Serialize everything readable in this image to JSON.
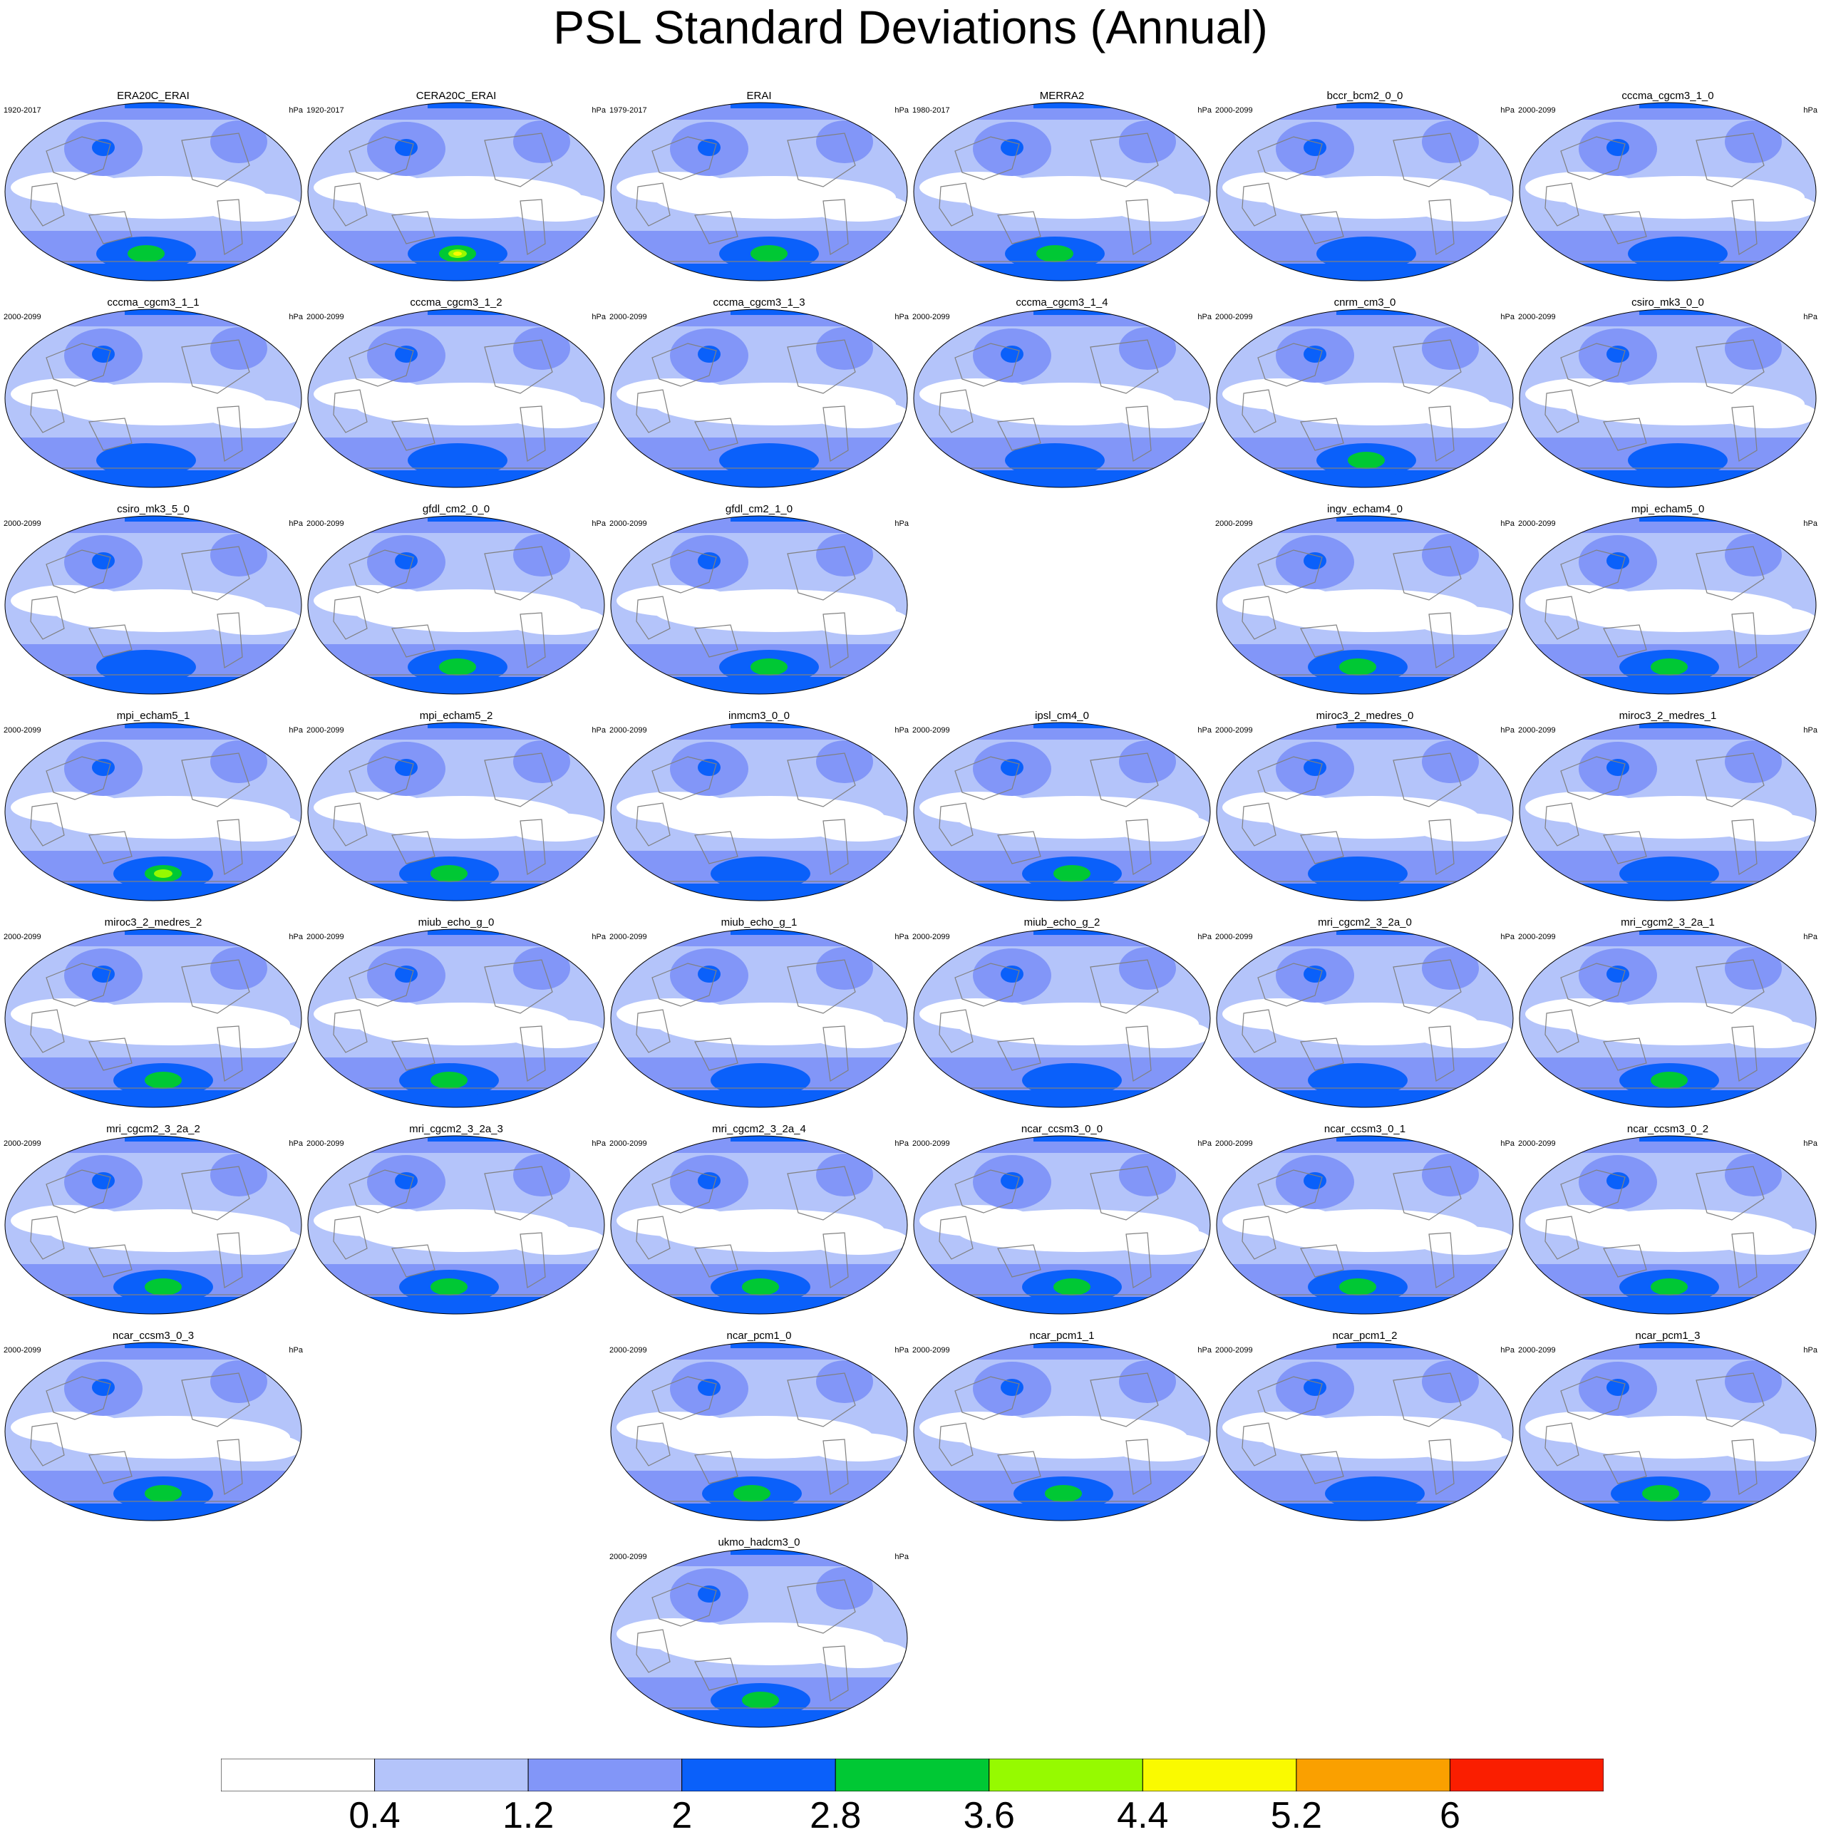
{
  "title": "PSL Standard Deviations (Annual)",
  "colors": {
    "bins": [
      "#ffffff",
      "#b4c4fa",
      "#8296f8",
      "#0a60fa",
      "#00c834",
      "#96fa00",
      "#fafa00",
      "#faa000",
      "#fa1e00"
    ],
    "coast": "#808080",
    "border": "#000000"
  },
  "panels": [
    {
      "name": "ERA20C_ERAI",
      "years": "1920-2017",
      "units": "hPa",
      "row": 0,
      "col": 0
    },
    {
      "name": "CERA20C_ERAI",
      "years": "1920-2017",
      "units": "hPa",
      "row": 0,
      "col": 1
    },
    {
      "name": "ERAI",
      "years": "1979-2017",
      "units": "hPa",
      "row": 0,
      "col": 2
    },
    {
      "name": "MERRA2",
      "years": "1980-2017",
      "units": "hPa",
      "row": 0,
      "col": 3
    },
    {
      "name": "bccr_bcm2_0_0",
      "years": "2000-2099",
      "units": "hPa",
      "row": 0,
      "col": 4
    },
    {
      "name": "cccma_cgcm3_1_0",
      "years": "2000-2099",
      "units": "hPa",
      "row": 0,
      "col": 5
    },
    {
      "name": "cccma_cgcm3_1_1",
      "years": "2000-2099",
      "units": "hPa",
      "row": 1,
      "col": 0
    },
    {
      "name": "cccma_cgcm3_1_2",
      "years": "2000-2099",
      "units": "hPa",
      "row": 1,
      "col": 1
    },
    {
      "name": "cccma_cgcm3_1_3",
      "years": "2000-2099",
      "units": "hPa",
      "row": 1,
      "col": 2
    },
    {
      "name": "cccma_cgcm3_1_4",
      "years": "2000-2099",
      "units": "hPa",
      "row": 1,
      "col": 3
    },
    {
      "name": "cnrm_cm3_0",
      "years": "2000-2099",
      "units": "hPa",
      "row": 1,
      "col": 4
    },
    {
      "name": "csiro_mk3_0_0",
      "years": "2000-2099",
      "units": "hPa",
      "row": 1,
      "col": 5
    },
    {
      "name": "csiro_mk3_5_0",
      "years": "2000-2099",
      "units": "hPa",
      "row": 2,
      "col": 0
    },
    {
      "name": "gfdl_cm2_0_0",
      "years": "2000-2099",
      "units": "hPa",
      "row": 2,
      "col": 1
    },
    {
      "name": "gfdl_cm2_1_0",
      "years": "2000-2099",
      "units": "hPa",
      "row": 2,
      "col": 2
    },
    {
      "name": "ingv_echam4_0",
      "years": "2000-2099",
      "units": "hPa",
      "row": 2,
      "col": 4
    },
    {
      "name": "mpi_echam5_0",
      "years": "2000-2099",
      "units": "hPa",
      "row": 2,
      "col": 5
    },
    {
      "name": "mpi_echam5_1",
      "years": "2000-2099",
      "units": "hPa",
      "row": 3,
      "col": 0
    },
    {
      "name": "mpi_echam5_2",
      "years": "2000-2099",
      "units": "hPa",
      "row": 3,
      "col": 1
    },
    {
      "name": "inmcm3_0_0",
      "years": "2000-2099",
      "units": "hPa",
      "row": 3,
      "col": 2
    },
    {
      "name": "ipsl_cm4_0",
      "years": "2000-2099",
      "units": "hPa",
      "row": 3,
      "col": 3
    },
    {
      "name": "miroc3_2_medres_0",
      "years": "2000-2099",
      "units": "hPa",
      "row": 3,
      "col": 4
    },
    {
      "name": "miroc3_2_medres_1",
      "years": "2000-2099",
      "units": "hPa",
      "row": 3,
      "col": 5
    },
    {
      "name": "miroc3_2_medres_2",
      "years": "2000-2099",
      "units": "hPa",
      "row": 4,
      "col": 0
    },
    {
      "name": "miub_echo_g_0",
      "years": "2000-2099",
      "units": "hPa",
      "row": 4,
      "col": 1
    },
    {
      "name": "miub_echo_g_1",
      "years": "2000-2099",
      "units": "hPa",
      "row": 4,
      "col": 2
    },
    {
      "name": "miub_echo_g_2",
      "years": "2000-2099",
      "units": "hPa",
      "row": 4,
      "col": 3
    },
    {
      "name": "mri_cgcm2_3_2a_0",
      "years": "2000-2099",
      "units": "hPa",
      "row": 4,
      "col": 4
    },
    {
      "name": "mri_cgcm2_3_2a_1",
      "years": "2000-2099",
      "units": "hPa",
      "row": 4,
      "col": 5
    },
    {
      "name": "mri_cgcm2_3_2a_2",
      "years": "2000-2099",
      "units": "hPa",
      "row": 5,
      "col": 0
    },
    {
      "name": "mri_cgcm2_3_2a_3",
      "years": "2000-2099",
      "units": "hPa",
      "row": 5,
      "col": 1
    },
    {
      "name": "mri_cgcm2_3_2a_4",
      "years": "2000-2099",
      "units": "hPa",
      "row": 5,
      "col": 2
    },
    {
      "name": "ncar_ccsm3_0_0",
      "years": "2000-2099",
      "units": "hPa",
      "row": 5,
      "col": 3
    },
    {
      "name": "ncar_ccsm3_0_1",
      "years": "2000-2099",
      "units": "hPa",
      "row": 5,
      "col": 4
    },
    {
      "name": "ncar_ccsm3_0_2",
      "years": "2000-2099",
      "units": "hPa",
      "row": 5,
      "col": 5
    },
    {
      "name": "ncar_ccsm3_0_3",
      "years": "2000-2099",
      "units": "hPa",
      "row": 6,
      "col": 0
    },
    {
      "name": "ncar_pcm1_0",
      "years": "2000-2099",
      "units": "hPa",
      "row": 6,
      "col": 2
    },
    {
      "name": "ncar_pcm1_1",
      "years": "2000-2099",
      "units": "hPa",
      "row": 6,
      "col": 3
    },
    {
      "name": "ncar_pcm1_2",
      "years": "2000-2099",
      "units": "hPa",
      "row": 6,
      "col": 4
    },
    {
      "name": "ncar_pcm1_3",
      "years": "2000-2099",
      "units": "hPa",
      "row": 6,
      "col": 5
    },
    {
      "name": "ukmo_hadcm3_0",
      "years": "2000-2099",
      "units": "hPa",
      "row": 7,
      "col": 2
    }
  ],
  "chart_data": {
    "type": "heatmap",
    "title": "PSL Standard Deviations (Annual)",
    "units": "hPa",
    "projection": "Robinson (Pacific-centered)",
    "colorbar": {
      "levels": [
        0.4,
        1.2,
        2,
        2.8,
        3.6,
        4.4,
        5.2,
        6
      ],
      "tick_labels": [
        "0.4",
        "1.2",
        "2",
        "2.8",
        "3.6",
        "4.4",
        "5.2",
        "6"
      ],
      "placement": "bottom"
    },
    "panels": [
      {
        "name": "ERA20C_ERAI",
        "years": "1920-2017",
        "max_level": 3.6
      },
      {
        "name": "CERA20C_ERAI",
        "years": "1920-2017",
        "max_level": 5.2
      },
      {
        "name": "ERAI",
        "years": "1979-2017",
        "max_level": 3.6
      },
      {
        "name": "MERRA2",
        "years": "1980-2017",
        "max_level": 3.6
      },
      {
        "name": "bccr_bcm2_0_0",
        "years": "2000-2099",
        "max_level": 2.8
      },
      {
        "name": "cccma_cgcm3_1_0",
        "years": "2000-2099",
        "max_level": 2.8
      },
      {
        "name": "cccma_cgcm3_1_1",
        "years": "2000-2099",
        "max_level": 2.8
      },
      {
        "name": "cccma_cgcm3_1_2",
        "years": "2000-2099",
        "max_level": 2.8
      },
      {
        "name": "cccma_cgcm3_1_3",
        "years": "2000-2099",
        "max_level": 2.8
      },
      {
        "name": "cccma_cgcm3_1_4",
        "years": "2000-2099",
        "max_level": 2.8
      },
      {
        "name": "cnrm_cm3_0",
        "years": "2000-2099",
        "max_level": 3.6
      },
      {
        "name": "csiro_mk3_0_0",
        "years": "2000-2099",
        "max_level": 2.8
      },
      {
        "name": "csiro_mk3_5_0",
        "years": "2000-2099",
        "max_level": 2.8
      },
      {
        "name": "gfdl_cm2_0_0",
        "years": "2000-2099",
        "max_level": 3.6
      },
      {
        "name": "gfdl_cm2_1_0",
        "years": "2000-2099",
        "max_level": 3.6
      },
      {
        "name": "ingv_echam4_0",
        "years": "2000-2099",
        "max_level": 3.6
      },
      {
        "name": "mpi_echam5_0",
        "years": "2000-2099",
        "max_level": 3.6
      },
      {
        "name": "mpi_echam5_1",
        "years": "2000-2099",
        "max_level": 4.4
      },
      {
        "name": "mpi_echam5_2",
        "years": "2000-2099",
        "max_level": 3.6
      },
      {
        "name": "inmcm3_0_0",
        "years": "2000-2099",
        "max_level": 2.8
      },
      {
        "name": "ipsl_cm4_0",
        "years": "2000-2099",
        "max_level": 3.6
      },
      {
        "name": "miroc3_2_medres_0",
        "years": "2000-2099",
        "max_level": 2.8
      },
      {
        "name": "miroc3_2_medres_1",
        "years": "2000-2099",
        "max_level": 2.8
      },
      {
        "name": "miroc3_2_medres_2",
        "years": "2000-2099",
        "max_level": 3.6
      },
      {
        "name": "miub_echo_g_0",
        "years": "2000-2099",
        "max_level": 3.6
      },
      {
        "name": "miub_echo_g_1",
        "years": "2000-2099",
        "max_level": 2.8
      },
      {
        "name": "miub_echo_g_2",
        "years": "2000-2099",
        "max_level": 2.8
      },
      {
        "name": "mri_cgcm2_3_2a_0",
        "years": "2000-2099",
        "max_level": 2.8
      },
      {
        "name": "mri_cgcm2_3_2a_1",
        "years": "2000-2099",
        "max_level": 3.6
      },
      {
        "name": "mri_cgcm2_3_2a_2",
        "years": "2000-2099",
        "max_level": 3.6
      },
      {
        "name": "mri_cgcm2_3_2a_3",
        "years": "2000-2099",
        "max_level": 3.6
      },
      {
        "name": "mri_cgcm2_3_2a_4",
        "years": "2000-2099",
        "max_level": 3.6
      },
      {
        "name": "ncar_ccsm3_0_0",
        "years": "2000-2099",
        "max_level": 3.6
      },
      {
        "name": "ncar_ccsm3_0_1",
        "years": "2000-2099",
        "max_level": 3.6
      },
      {
        "name": "ncar_ccsm3_0_2",
        "years": "2000-2099",
        "max_level": 3.6
      },
      {
        "name": "ncar_ccsm3_0_3",
        "years": "2000-2099",
        "max_level": 3.6
      },
      {
        "name": "ncar_pcm1_0",
        "years": "2000-2099",
        "max_level": 3.6
      },
      {
        "name": "ncar_pcm1_1",
        "years": "2000-2099",
        "max_level": 3.6
      },
      {
        "name": "ncar_pcm1_2",
        "years": "2000-2099",
        "max_level": 2.8
      },
      {
        "name": "ncar_pcm1_3",
        "years": "2000-2099",
        "max_level": 3.6
      },
      {
        "name": "ukmo_hadcm3_0",
        "years": "2000-2099",
        "max_level": 3.6
      }
    ]
  }
}
